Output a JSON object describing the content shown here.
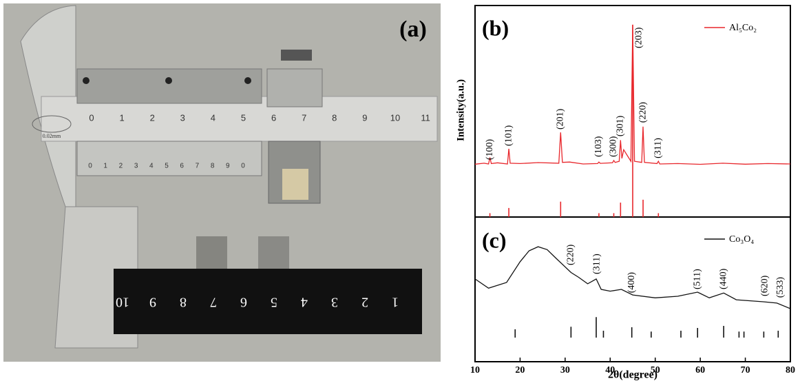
{
  "photo": {
    "label": "(a)",
    "precision": "0.02mm",
    "main_scale": [
      "0",
      "1",
      "2",
      "3",
      "4",
      "5",
      "6",
      "7",
      "8",
      "9",
      "10",
      "11"
    ],
    "vernier_scale": [
      "0",
      "1",
      "2",
      "3",
      "4",
      "5",
      "6",
      "7",
      "8",
      "9",
      "0"
    ],
    "ruler": [
      "10",
      "9",
      "8",
      "7",
      "6",
      "5",
      "4",
      "3",
      "2",
      "1"
    ]
  },
  "chart_data": [
    {
      "type": "line",
      "label": "(b)",
      "ylabel": "Intensity(a.u.)",
      "xlim": [
        10,
        80
      ],
      "ylim": [
        0,
        110
      ],
      "legend": "upper right",
      "x": [
        10,
        12,
        13,
        13.3,
        13.6,
        15,
        17.2,
        17.5,
        17.8,
        20,
        24,
        28.6,
        29,
        29.4,
        31,
        34,
        37.2,
        37.5,
        37.8,
        40.5,
        40.8,
        41.1,
        42,
        42.3,
        42.6,
        43,
        44.6,
        45,
        45.4,
        47,
        47.3,
        47.6,
        50.4,
        50.7,
        51,
        55,
        60,
        65,
        70,
        75,
        80
      ],
      "series": [
        {
          "name": "Al₅Co₂",
          "color": "#e8262b",
          "values": [
            27.5,
            28,
            27.6,
            31,
            27.8,
            28.2,
            27.6,
            35.5,
            28,
            27.8,
            28.3,
            28,
            44,
            28.4,
            28.6,
            27.6,
            27.8,
            28.6,
            27.9,
            28.2,
            29.4,
            28.4,
            29,
            40,
            30.5,
            35,
            29,
            100,
            29,
            28.4,
            47,
            28.4,
            27.8,
            29,
            27.6,
            27.8,
            27.4,
            28,
            27.5,
            27.8,
            27.6
          ]
        }
      ],
      "reference": {
        "x": [
          13.3,
          17.5,
          29,
          37.5,
          40.8,
          42.3,
          45,
          47.3,
          50.7
        ],
        "values": [
          2,
          4.7,
          8,
          2,
          2,
          7.5,
          100,
          9,
          2
        ]
      },
      "annotations": [
        {
          "text": "(100)",
          "x": 13.3,
          "y": 29.7
        },
        {
          "text": "(101)",
          "x": 17.5,
          "y": 36.9
        },
        {
          "text": "(201)",
          "x": 29,
          "y": 45.5
        },
        {
          "text": "(103)",
          "x": 37.5,
          "y": 31.2
        },
        {
          "text": "(300)",
          "x": 40.8,
          "y": 31.2
        },
        {
          "text": "(301)",
          "x": 42.3,
          "y": 41.9
        },
        {
          "text": "(203)",
          "x": 46.4,
          "y": 87.8
        },
        {
          "text": "(220)",
          "x": 47.3,
          "y": 49
        },
        {
          "text": "(311)",
          "x": 50.7,
          "y": 30.5
        }
      ]
    },
    {
      "type": "line",
      "label": "(c)",
      "xlabel": "2θ(degree)",
      "xlim": [
        10,
        80
      ],
      "xticks": [
        10,
        20,
        30,
        40,
        50,
        60,
        70,
        80
      ],
      "ylim": [
        0,
        100
      ],
      "legend": "upper right",
      "x": [
        10,
        13,
        17,
        20,
        22,
        24,
        26,
        28,
        31.3,
        33,
        35,
        36.9,
        38,
        40,
        42.5,
        45,
        50,
        55,
        59.4,
        62,
        65.2,
        68,
        74,
        77,
        80
      ],
      "series": [
        {
          "name": "Co₃O₄",
          "color": "#111111",
          "values": [
            48.6,
            41,
            45.7,
            62.9,
            72,
            75.4,
            73,
            65.7,
            54,
            50,
            44.6,
            48.6,
            40,
            38.5,
            40,
            35.4,
            33,
            34.3,
            37.7,
            33,
            37,
            31.4,
            29.7,
            28.6,
            24
          ]
        }
      ],
      "reference": {
        "x": [
          18.9,
          31.3,
          36.9,
          38.5,
          44.8,
          49.1,
          55.7,
          59.4,
          65.2,
          68.6,
          69.7,
          74.1,
          77.3
        ],
        "values": [
          6.9,
          9,
          17,
          5.7,
          8.6,
          5,
          5.7,
          8,
          9.7,
          5,
          5,
          5,
          5.7
        ]
      },
      "annotations": [
        {
          "text": "(220)",
          "x": 31.3,
          "y": 60
        },
        {
          "text": "(311)",
          "x": 37.1,
          "y": 52.6
        },
        {
          "text": "(400)",
          "x": 44.8,
          "y": 37
        },
        {
          "text": "(511)",
          "x": 59.4,
          "y": 40
        },
        {
          "text": "(440)",
          "x": 65.2,
          "y": 40
        },
        {
          "text": "(620)",
          "x": 74.4,
          "y": 34.3
        },
        {
          "text": "(533)",
          "x": 77.8,
          "y": 33
        }
      ]
    }
  ]
}
